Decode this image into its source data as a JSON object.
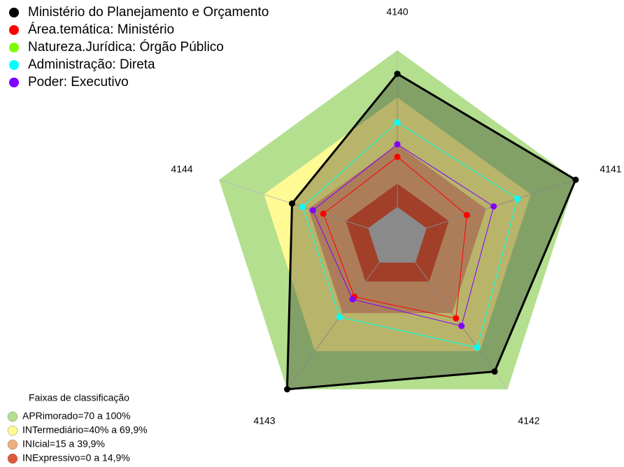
{
  "chart_data": {
    "type": "radar",
    "categories": [
      "4140",
      "4141",
      "4142",
      "4143",
      "4144"
    ],
    "ylim": [
      0,
      100
    ],
    "series": [
      {
        "name": "Ministério do Planejamento e Orçamento",
        "color": "#000000",
        "filled": true,
        "values": [
          85,
          100,
          86,
          100,
          51
        ]
      },
      {
        "name": "Área.temática: Ministério",
        "color": "#ff0000",
        "values": [
          32,
          27,
          44,
          27,
          30
        ]
      },
      {
        "name": "Natureza.Jurídica: Órgão Público",
        "color": "#7cfc00",
        "values": [
          54,
          61,
          67,
          43,
          44
        ]
      },
      {
        "name": "Administração: Direta",
        "color": "#00ffff",
        "values": [
          54,
          61,
          67,
          43,
          44
        ]
      },
      {
        "name": "Poder: Executivo",
        "color": "#8000ff",
        "values": [
          40,
          45,
          50,
          29,
          37
        ]
      }
    ],
    "bands_title": "Faixas de classificação",
    "bands": [
      {
        "label": "APRimorado=70 a 100%",
        "color": "#b4df8f",
        "range": [
          70,
          100
        ]
      },
      {
        "label": "INTermediário=40% a 69,9%",
        "color": "#fffa94",
        "range": [
          40,
          69.9
        ]
      },
      {
        "label": "INIcial=15 a 39,9%",
        "color": "#f0ad7c",
        "range": [
          15,
          39.9
        ]
      },
      {
        "label": "INExpressivo=0 a 14,9%",
        "color": "#e0583a",
        "range": [
          0,
          14.9
        ]
      }
    ]
  }
}
